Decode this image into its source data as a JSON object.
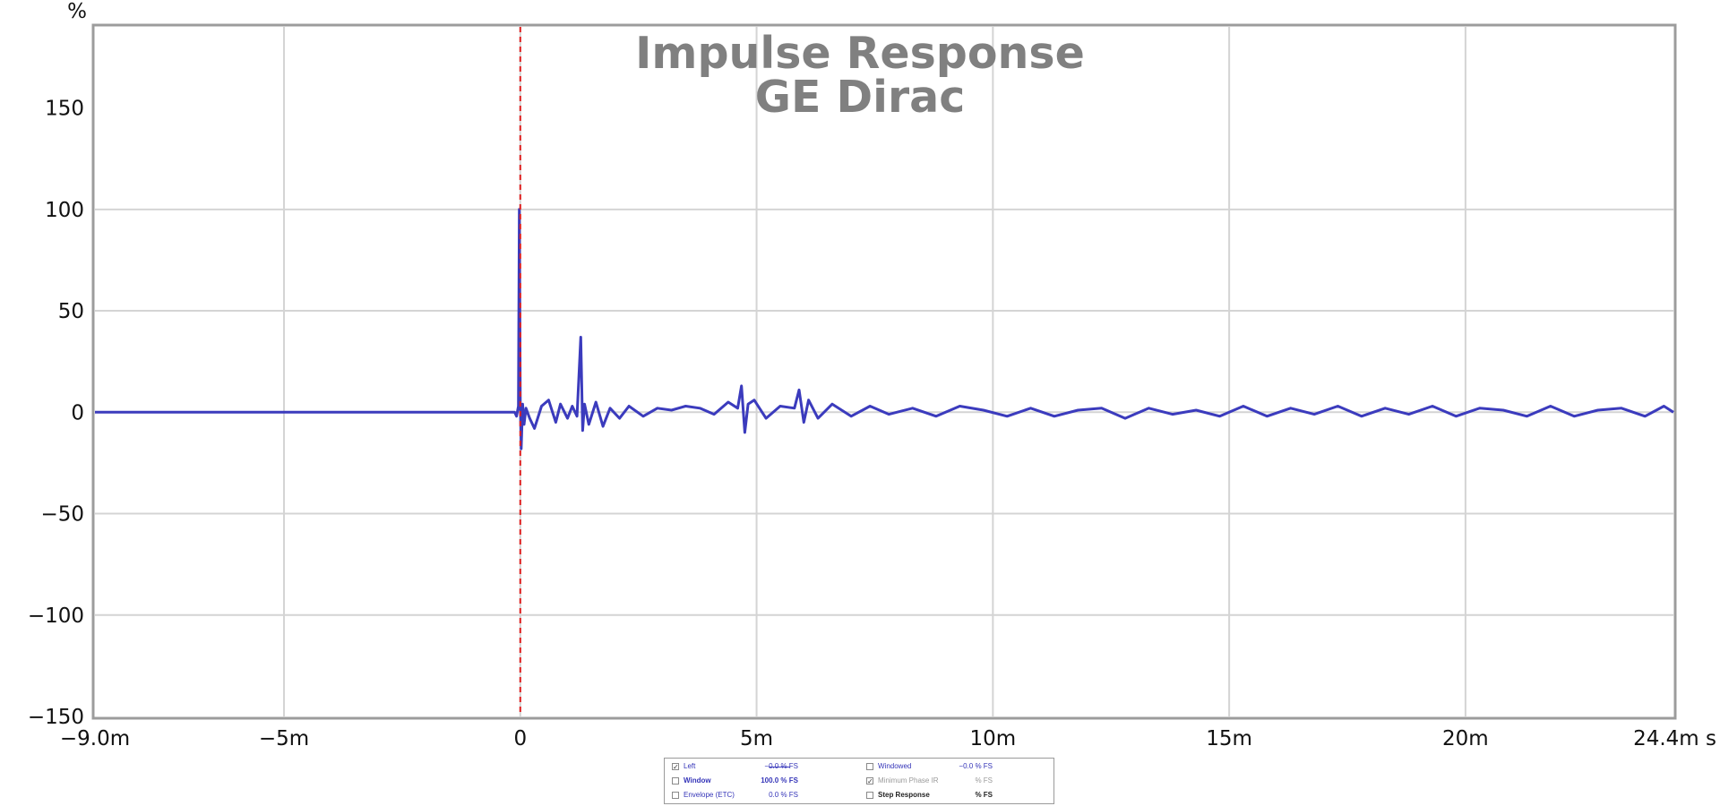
{
  "chart_data": {
    "type": "line",
    "title": "Impulse Response",
    "subtitle": "GE Dirac",
    "xlabel": "s",
    "ylabel": "%",
    "xlim": [
      -9.0,
      24.4
    ],
    "ylim": [
      -150,
      190
    ],
    "x_ticks": [
      {
        "value": -9.0,
        "label": "−9.0m"
      },
      {
        "value": -5,
        "label": "−5m"
      },
      {
        "value": 0,
        "label": "0"
      },
      {
        "value": 5,
        "label": "5m"
      },
      {
        "value": 10,
        "label": "10m"
      },
      {
        "value": 15,
        "label": "15m"
      },
      {
        "value": 20,
        "label": "20m"
      },
      {
        "value": 24.4,
        "label": "24.4m s"
      }
    ],
    "y_ticks": [
      {
        "value": 150,
        "label": "150"
      },
      {
        "value": 100,
        "label": "100"
      },
      {
        "value": 50,
        "label": "50"
      },
      {
        "value": 0,
        "label": "0"
      },
      {
        "value": -50,
        "label": "−50"
      },
      {
        "value": -100,
        "label": "−100"
      },
      {
        "value": -150,
        "label": "−150"
      }
    ],
    "grid": true,
    "marker_line": {
      "x": 0,
      "color": "#e02020",
      "style": "dashed"
    },
    "series": [
      {
        "name": "Left",
        "color": "#3b3bbd",
        "x": [
          -9.0,
          -0.12,
          -0.08,
          -0.04,
          -0.02,
          0.0,
          0.02,
          0.05,
          0.08,
          0.12,
          0.2,
          0.3,
          0.45,
          0.6,
          0.75,
          0.85,
          1.0,
          1.1,
          1.2,
          1.28,
          1.32,
          1.36,
          1.45,
          1.6,
          1.75,
          1.9,
          2.1,
          2.3,
          2.6,
          2.9,
          3.2,
          3.5,
          3.8,
          4.1,
          4.4,
          4.6,
          4.68,
          4.75,
          4.82,
          4.95,
          5.2,
          5.5,
          5.8,
          5.9,
          6.0,
          6.1,
          6.3,
          6.6,
          7.0,
          7.4,
          7.8,
          8.3,
          8.8,
          9.3,
          9.8,
          10.3,
          10.8,
          11.3,
          11.8,
          12.3,
          12.8,
          13.3,
          13.8,
          14.3,
          14.8,
          15.3,
          15.8,
          16.3,
          16.8,
          17.3,
          17.8,
          18.3,
          18.8,
          19.3,
          19.8,
          20.3,
          20.8,
          21.3,
          21.8,
          22.3,
          22.8,
          23.3,
          23.8,
          24.2,
          24.4
        ],
        "y": [
          0,
          0,
          -2,
          3,
          100,
          5,
          -18,
          4,
          -6,
          2,
          -3,
          -8,
          3,
          6,
          -5,
          4,
          -3,
          3,
          -2,
          37,
          -9,
          4,
          -6,
          5,
          -7,
          2,
          -3,
          3,
          -2,
          2,
          1,
          3,
          2,
          -1,
          5,
          2,
          13,
          -10,
          4,
          6,
          -3,
          3,
          2,
          11,
          -5,
          6,
          -3,
          4,
          -2,
          3,
          -1,
          2,
          -2,
          3,
          1,
          -2,
          2,
          -2,
          1,
          2,
          -3,
          2,
          -1,
          1,
          -2,
          3,
          -2,
          2,
          -1,
          3,
          -2,
          2,
          -1,
          3,
          -2,
          2,
          1,
          -2,
          3,
          -2,
          1,
          2,
          -2,
          3,
          0
        ]
      }
    ]
  },
  "legend": {
    "rows": [
      {
        "left_checked": "✓",
        "left_label": "Left",
        "left_value": "−0.0 % FS",
        "right_checked": "",
        "right_label": "Windowed",
        "right_value": "−0.0 % FS"
      },
      {
        "left_checked": "",
        "left_label": "Window",
        "left_value": "100.0 % FS",
        "right_checked": "✓",
        "right_label": "Minimum Phase IR",
        "right_value": "% FS"
      },
      {
        "left_checked": "",
        "left_label": "Envelope (ETC)",
        "left_value": "0.0 % FS",
        "right_checked": "",
        "right_label": "Step Response",
        "right_value": "% FS"
      }
    ]
  }
}
